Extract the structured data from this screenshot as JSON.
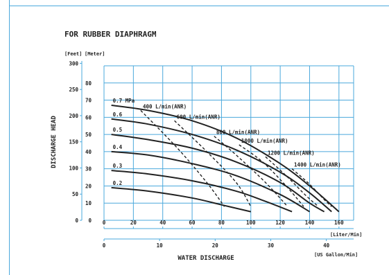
{
  "chart_data": {
    "type": "line",
    "title": "FOR RUBBER DIAPHRAGM",
    "ylabel": "DISCHARGE HEAD",
    "xlabel": "WATER DISCHARGE",
    "y_units": {
      "feet": "[Feet]",
      "meter": "[Meter]"
    },
    "x_units": {
      "liter": "[Liter/Min]",
      "gallon": "[US Gallon/Min]"
    },
    "meter_ticks": [
      "0",
      "10",
      "20",
      "30",
      "40",
      "50",
      "60",
      "70",
      "80"
    ],
    "feet_ticks": [
      "0",
      "50",
      "100",
      "150",
      "200",
      "250",
      "300"
    ],
    "liter_ticks": [
      "0",
      "20",
      "40",
      "60",
      "80",
      "100",
      "120",
      "140",
      "160"
    ],
    "gallon_ticks": [
      "0",
      "10",
      "20",
      "30",
      "40"
    ],
    "xlim": [
      0,
      170
    ],
    "ylim": [
      0,
      90
    ],
    "grid": true,
    "colors": {
      "grid": "#4aa8dc",
      "curve": "#222222",
      "frame": "#4aa8dc"
    },
    "pressure_curves": [
      {
        "label": "0.7 MPa",
        "points": [
          [
            5,
            67
          ],
          [
            30,
            64
          ],
          [
            60,
            58
          ],
          [
            90,
            48
          ],
          [
            120,
            33
          ],
          [
            140,
            20
          ],
          [
            160,
            5
          ]
        ]
      },
      {
        "label": "0.6",
        "points": [
          [
            5,
            59
          ],
          [
            30,
            56
          ],
          [
            60,
            50
          ],
          [
            90,
            41
          ],
          [
            120,
            28
          ],
          [
            140,
            16
          ],
          [
            155,
            5
          ]
        ]
      },
      {
        "label": "0.5",
        "points": [
          [
            5,
            50
          ],
          [
            30,
            47
          ],
          [
            60,
            42
          ],
          [
            90,
            34
          ],
          [
            120,
            22
          ],
          [
            140,
            10
          ],
          [
            150,
            5
          ]
        ]
      },
      {
        "label": "0.4",
        "points": [
          [
            5,
            40
          ],
          [
            30,
            38
          ],
          [
            60,
            33
          ],
          [
            90,
            26
          ],
          [
            120,
            15
          ],
          [
            140,
            5
          ]
        ]
      },
      {
        "label": "0.3",
        "points": [
          [
            5,
            29
          ],
          [
            30,
            27
          ],
          [
            60,
            23
          ],
          [
            90,
            17
          ],
          [
            110,
            11
          ],
          [
            128,
            5
          ]
        ]
      },
      {
        "label": "0.2",
        "points": [
          [
            5,
            19
          ],
          [
            30,
            17
          ],
          [
            60,
            13
          ],
          [
            80,
            9
          ],
          [
            100,
            5
          ]
        ]
      }
    ],
    "air_curves": [
      {
        "label": "400 L/min(ANR)",
        "points": [
          [
            25,
            64
          ],
          [
            50,
            42
          ],
          [
            70,
            22
          ],
          [
            82,
            8
          ]
        ]
      },
      {
        "label": "600 L/min(ANR)",
        "points": [
          [
            48,
            58
          ],
          [
            70,
            40
          ],
          [
            90,
            22
          ],
          [
            100,
            8
          ]
        ]
      },
      {
        "label": "800 L/min(ANR)",
        "points": [
          [
            75,
            49
          ],
          [
            90,
            38
          ],
          [
            110,
            22
          ],
          [
            125,
            8
          ]
        ]
      },
      {
        "label": "1000 L/min(ANR)",
        "points": [
          [
            92,
            44
          ],
          [
            108,
            34
          ],
          [
            124,
            20
          ],
          [
            136,
            8
          ]
        ]
      },
      {
        "label": "1200 L/min(ANR)",
        "points": [
          [
            110,
            37
          ],
          [
            124,
            26
          ],
          [
            138,
            14
          ],
          [
            146,
            8
          ]
        ]
      },
      {
        "label": "1400 L/min(ANR)",
        "points": [
          [
            128,
            30
          ],
          [
            140,
            21
          ],
          [
            150,
            12
          ],
          [
            155,
            8
          ]
        ]
      }
    ]
  }
}
